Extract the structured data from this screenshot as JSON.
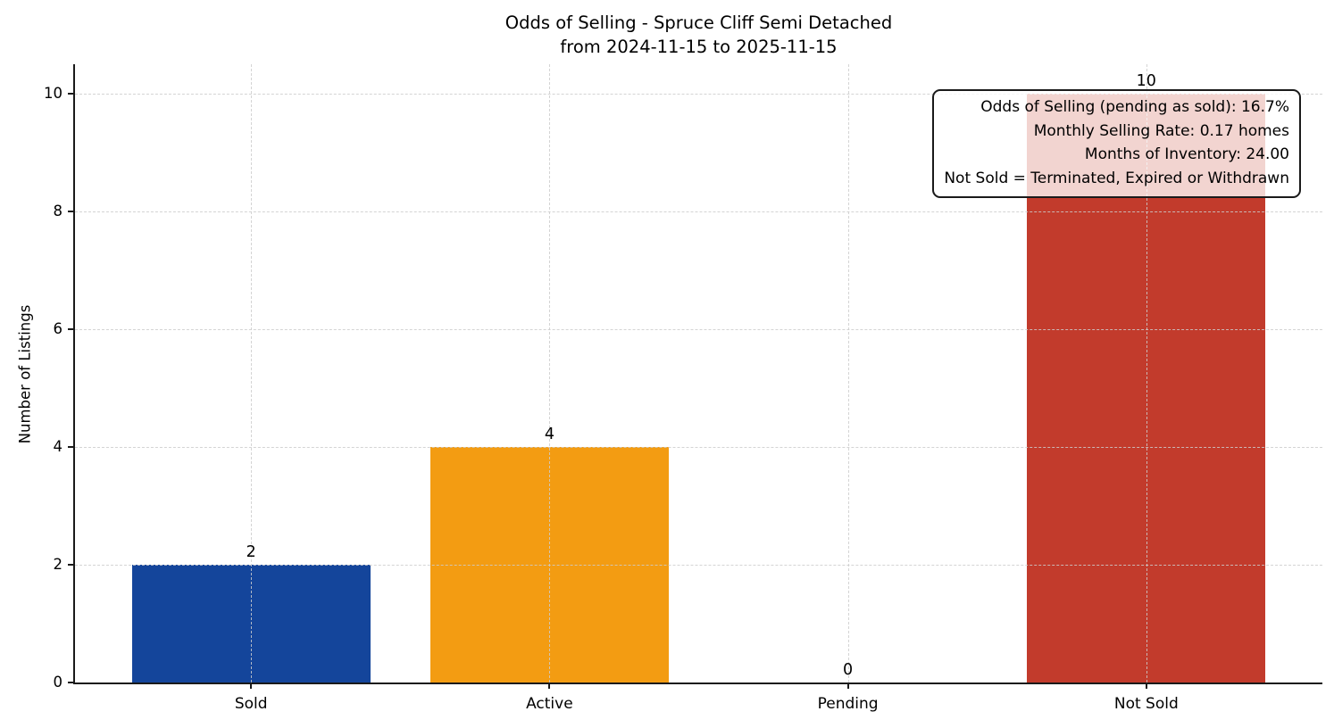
{
  "chart_data": {
    "type": "bar",
    "title": "Odds of Selling - Spruce Cliff Semi Detached",
    "subtitle": "from 2024-11-15 to 2025-11-15",
    "categories": [
      "Sold",
      "Active",
      "Pending",
      "Not Sold"
    ],
    "values": [
      2,
      4,
      0,
      10
    ],
    "bar_colors": [
      "#14459b",
      "#f39c12",
      "#999999",
      "#c23b2c"
    ],
    "value_labels": [
      "2",
      "4",
      "0",
      "10"
    ],
    "xlabel": "",
    "ylabel": "Number of Listings",
    "yticks": [
      0,
      2,
      4,
      6,
      8,
      10
    ],
    "ylim": [
      0,
      10.5
    ],
    "grid": "dashed light-gray horizontal and vertical gridlines drawn over bars",
    "legend": "none",
    "annotation": {
      "position": "top-right",
      "lines": [
        "Odds of Selling (pending as sold): 16.7%",
        "Monthly Selling Rate: 0.17 homes",
        "Months of Inventory: 24.00",
        "Not Sold = Terminated, Expired or Withdrawn"
      ]
    }
  }
}
